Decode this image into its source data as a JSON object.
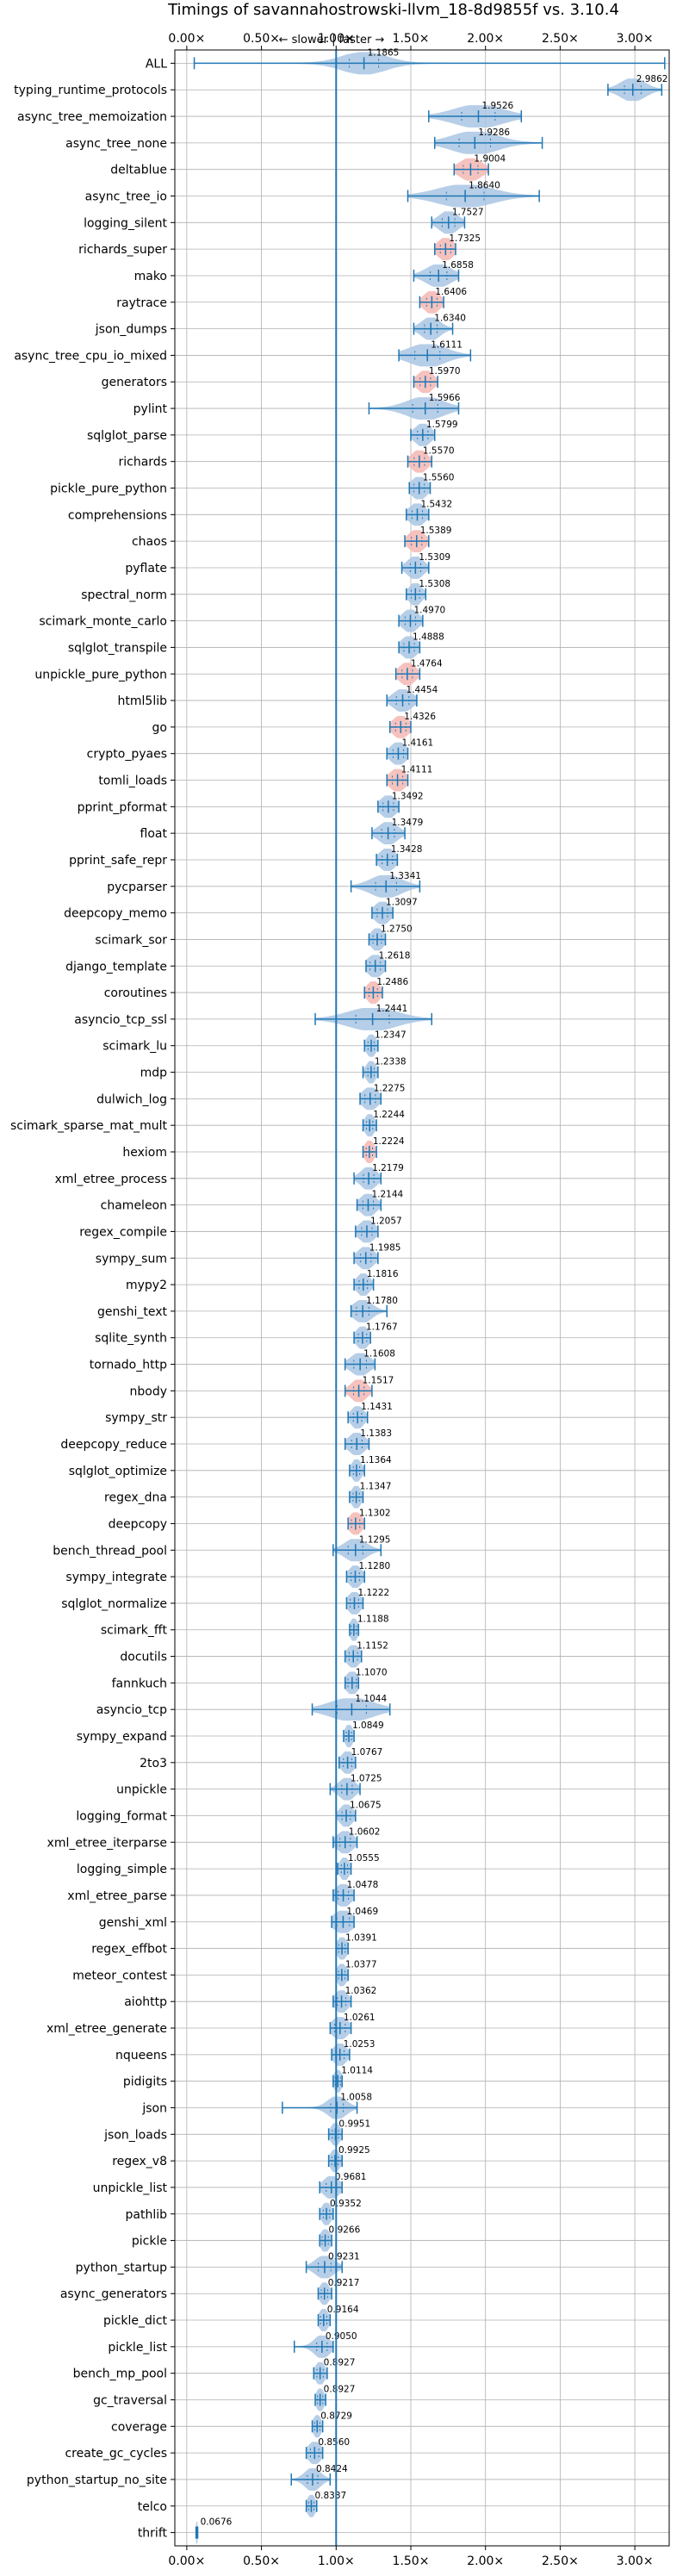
{
  "chart_data": {
    "type": "violin",
    "title": "Timings of savannahostrowski-llvm_18-8d9855f vs. 3.10.4",
    "direction_label": "← slower | faster →",
    "xlim": [
      -0.08,
      3.23
    ],
    "xticks": [
      0.0,
      0.5,
      1.0,
      1.5,
      2.0,
      2.5,
      3.0
    ],
    "xtick_labels": [
      "0.00×",
      "0.50×",
      "1.00×",
      "1.50×",
      "2.00×",
      "2.50×",
      "3.00×"
    ],
    "reference_line": 1.0,
    "grid": true,
    "colors": {
      "violin_fill": "#a9c6e3",
      "highlight_fill": "#f4b7b3",
      "line": "#1f77b4",
      "grid": "#b0b0b0"
    },
    "benchmarks": [
      {
        "name": "ALL",
        "value": 1.1865,
        "label": "1.1865",
        "min": 0.05,
        "max": 3.2,
        "spread": 0.14
      },
      {
        "name": "typing_runtime_protocols",
        "value": 2.9862,
        "label": "2.9862",
        "min": 2.82,
        "max": 3.18,
        "spread": 0.08
      },
      {
        "name": "async_tree_memoization",
        "value": 1.9526,
        "label": "1.9526",
        "min": 1.62,
        "max": 2.24,
        "spread": 0.16
      },
      {
        "name": "async_tree_none",
        "value": 1.9286,
        "label": "1.9286",
        "min": 1.66,
        "max": 2.38,
        "spread": 0.15
      },
      {
        "name": "deltablue",
        "value": 1.9004,
        "label": "1.9004",
        "min": 1.79,
        "max": 2.02,
        "spread": 0.07,
        "highlight": true
      },
      {
        "name": "async_tree_io",
        "value": 1.864,
        "label": "1.8640",
        "min": 1.48,
        "max": 2.36,
        "spread": 0.18
      },
      {
        "name": "logging_silent",
        "value": 1.7527,
        "label": "1.7527",
        "min": 1.64,
        "max": 1.86,
        "spread": 0.06
      },
      {
        "name": "richards_super",
        "value": 1.7325,
        "label": "1.7325",
        "min": 1.66,
        "max": 1.8,
        "spread": 0.05,
        "highlight": true
      },
      {
        "name": "mako",
        "value": 1.6858,
        "label": "1.6858",
        "min": 1.52,
        "max": 1.82,
        "spread": 0.08
      },
      {
        "name": "raytrace",
        "value": 1.6406,
        "label": "1.6406",
        "min": 1.56,
        "max": 1.72,
        "spread": 0.05,
        "highlight": true
      },
      {
        "name": "json_dumps",
        "value": 1.634,
        "label": "1.6340",
        "min": 1.52,
        "max": 1.78,
        "spread": 0.06
      },
      {
        "name": "async_tree_cpu_io_mixed",
        "value": 1.6111,
        "label": "1.6111",
        "min": 1.42,
        "max": 1.9,
        "spread": 0.12
      },
      {
        "name": "generators",
        "value": 1.597,
        "label": "1.5970",
        "min": 1.52,
        "max": 1.68,
        "spread": 0.05,
        "highlight": true
      },
      {
        "name": "pylint",
        "value": 1.5966,
        "label": "1.5966",
        "min": 1.22,
        "max": 1.82,
        "spread": 0.12
      },
      {
        "name": "sqlglot_parse",
        "value": 1.5799,
        "label": "1.5799",
        "min": 1.5,
        "max": 1.66,
        "spread": 0.05
      },
      {
        "name": "richards",
        "value": 1.557,
        "label": "1.5570",
        "min": 1.48,
        "max": 1.64,
        "spread": 0.05,
        "highlight": true
      },
      {
        "name": "pickle_pure_python",
        "value": 1.556,
        "label": "1.5560",
        "min": 1.49,
        "max": 1.63,
        "spread": 0.05
      },
      {
        "name": "comprehensions",
        "value": 1.5432,
        "label": "1.5432",
        "min": 1.47,
        "max": 1.62,
        "spread": 0.05
      },
      {
        "name": "chaos",
        "value": 1.5389,
        "label": "1.5389",
        "min": 1.46,
        "max": 1.62,
        "spread": 0.05,
        "highlight": true
      },
      {
        "name": "pyflate",
        "value": 1.5309,
        "label": "1.5309",
        "min": 1.44,
        "max": 1.62,
        "spread": 0.05
      },
      {
        "name": "spectral_norm",
        "value": 1.5308,
        "label": "1.5308",
        "min": 1.47,
        "max": 1.6,
        "spread": 0.04
      },
      {
        "name": "scimark_monte_carlo",
        "value": 1.497,
        "label": "1.4970",
        "min": 1.42,
        "max": 1.58,
        "spread": 0.05
      },
      {
        "name": "sqlglot_transpile",
        "value": 1.4888,
        "label": "1.4888",
        "min": 1.42,
        "max": 1.56,
        "spread": 0.05
      },
      {
        "name": "unpickle_pure_python",
        "value": 1.4764,
        "label": "1.4764",
        "min": 1.4,
        "max": 1.56,
        "spread": 0.05,
        "highlight": true
      },
      {
        "name": "html5lib",
        "value": 1.4454,
        "label": "1.4454",
        "min": 1.34,
        "max": 1.54,
        "spread": 0.06
      },
      {
        "name": "go",
        "value": 1.4326,
        "label": "1.4326",
        "min": 1.36,
        "max": 1.5,
        "spread": 0.05,
        "highlight": true
      },
      {
        "name": "crypto_pyaes",
        "value": 1.4161,
        "label": "1.4161",
        "min": 1.34,
        "max": 1.48,
        "spread": 0.05
      },
      {
        "name": "tomli_loads",
        "value": 1.4111,
        "label": "1.4111",
        "min": 1.34,
        "max": 1.48,
        "spread": 0.05,
        "highlight": true
      },
      {
        "name": "pprint_pformat",
        "value": 1.3492,
        "label": "1.3492",
        "min": 1.28,
        "max": 1.42,
        "spread": 0.05
      },
      {
        "name": "float",
        "value": 1.3479,
        "label": "1.3479",
        "min": 1.24,
        "max": 1.46,
        "spread": 0.06
      },
      {
        "name": "pprint_safe_repr",
        "value": 1.3428,
        "label": "1.3428",
        "min": 1.27,
        "max": 1.41,
        "spread": 0.05
      },
      {
        "name": "pycparser",
        "value": 1.3341,
        "label": "1.3341",
        "min": 1.1,
        "max": 1.56,
        "spread": 0.1
      },
      {
        "name": "deepcopy_memo",
        "value": 1.3097,
        "label": "1.3097",
        "min": 1.24,
        "max": 1.38,
        "spread": 0.05
      },
      {
        "name": "scimark_sor",
        "value": 1.275,
        "label": "1.2750",
        "min": 1.22,
        "max": 1.33,
        "spread": 0.04
      },
      {
        "name": "django_template",
        "value": 1.2618,
        "label": "1.2618",
        "min": 1.2,
        "max": 1.33,
        "spread": 0.05
      },
      {
        "name": "coroutines",
        "value": 1.2486,
        "label": "1.2486",
        "min": 1.19,
        "max": 1.31,
        "spread": 0.04,
        "highlight": true
      },
      {
        "name": "asyncio_tcp_ssl",
        "value": 1.2441,
        "label": "1.2441",
        "min": 0.86,
        "max": 1.64,
        "spread": 0.16
      },
      {
        "name": "scimark_lu",
        "value": 1.2347,
        "label": "1.2347",
        "min": 1.19,
        "max": 1.28,
        "spread": 0.03
      },
      {
        "name": "mdp",
        "value": 1.2338,
        "label": "1.2338",
        "min": 1.18,
        "max": 1.28,
        "spread": 0.03
      },
      {
        "name": "dulwich_log",
        "value": 1.2275,
        "label": "1.2275",
        "min": 1.16,
        "max": 1.3,
        "spread": 0.05
      },
      {
        "name": "scimark_sparse_mat_mult",
        "value": 1.2244,
        "label": "1.2244",
        "min": 1.18,
        "max": 1.27,
        "spread": 0.03
      },
      {
        "name": "hexiom",
        "value": 1.2224,
        "label": "1.2224",
        "min": 1.18,
        "max": 1.27,
        "spread": 0.03,
        "highlight": true
      },
      {
        "name": "xml_etree_process",
        "value": 1.2179,
        "label": "1.2179",
        "min": 1.12,
        "max": 1.3,
        "spread": 0.05
      },
      {
        "name": "chameleon",
        "value": 1.2144,
        "label": "1.2144",
        "min": 1.14,
        "max": 1.3,
        "spread": 0.05
      },
      {
        "name": "regex_compile",
        "value": 1.2057,
        "label": "1.2057",
        "min": 1.13,
        "max": 1.28,
        "spread": 0.05
      },
      {
        "name": "sympy_sum",
        "value": 1.1985,
        "label": "1.1985",
        "min": 1.12,
        "max": 1.28,
        "spread": 0.05
      },
      {
        "name": "mypy2",
        "value": 1.1816,
        "label": "1.1816",
        "min": 1.12,
        "max": 1.25,
        "spread": 0.04
      },
      {
        "name": "genshi_text",
        "value": 1.178,
        "label": "1.1780",
        "min": 1.1,
        "max": 1.34,
        "spread": 0.06
      },
      {
        "name": "sqlite_synth",
        "value": 1.1767,
        "label": "1.1767",
        "min": 1.12,
        "max": 1.23,
        "spread": 0.04
      },
      {
        "name": "tornado_http",
        "value": 1.1608,
        "label": "1.1608",
        "min": 1.06,
        "max": 1.26,
        "spread": 0.06
      },
      {
        "name": "nbody",
        "value": 1.1517,
        "label": "1.1517",
        "min": 1.06,
        "max": 1.24,
        "spread": 0.05,
        "highlight": true
      },
      {
        "name": "sympy_str",
        "value": 1.1431,
        "label": "1.1431",
        "min": 1.08,
        "max": 1.21,
        "spread": 0.04
      },
      {
        "name": "deepcopy_reduce",
        "value": 1.1383,
        "label": "1.1383",
        "min": 1.06,
        "max": 1.22,
        "spread": 0.05
      },
      {
        "name": "sqlglot_optimize",
        "value": 1.1364,
        "label": "1.1364",
        "min": 1.09,
        "max": 1.19,
        "spread": 0.03
      },
      {
        "name": "regex_dna",
        "value": 1.1347,
        "label": "1.1347",
        "min": 1.09,
        "max": 1.18,
        "spread": 0.03
      },
      {
        "name": "deepcopy",
        "value": 1.1302,
        "label": "1.1302",
        "min": 1.08,
        "max": 1.19,
        "spread": 0.04,
        "highlight": true
      },
      {
        "name": "bench_thread_pool",
        "value": 1.1295,
        "label": "1.1295",
        "min": 0.98,
        "max": 1.3,
        "spread": 0.07
      },
      {
        "name": "sympy_integrate",
        "value": 1.128,
        "label": "1.1280",
        "min": 1.07,
        "max": 1.19,
        "spread": 0.04
      },
      {
        "name": "sqlglot_normalize",
        "value": 1.1222,
        "label": "1.1222",
        "min": 1.07,
        "max": 1.18,
        "spread": 0.04
      },
      {
        "name": "scimark_fft",
        "value": 1.1188,
        "label": "1.1188",
        "min": 1.09,
        "max": 1.15,
        "spread": 0.025
      },
      {
        "name": "docutils",
        "value": 1.1152,
        "label": "1.1152",
        "min": 1.06,
        "max": 1.17,
        "spread": 0.04
      },
      {
        "name": "fannkuch",
        "value": 1.107,
        "label": "1.1070",
        "min": 1.06,
        "max": 1.15,
        "spread": 0.04
      },
      {
        "name": "asyncio_tcp",
        "value": 1.1044,
        "label": "1.1044",
        "min": 0.84,
        "max": 1.36,
        "spread": 0.14
      },
      {
        "name": "sympy_expand",
        "value": 1.0849,
        "label": "1.0849",
        "min": 1.05,
        "max": 1.12,
        "spread": 0.025
      },
      {
        "name": "2to3",
        "value": 1.0767,
        "label": "1.0767",
        "min": 1.02,
        "max": 1.13,
        "spread": 0.04
      },
      {
        "name": "unpickle",
        "value": 1.0725,
        "label": "1.0725",
        "min": 0.96,
        "max": 1.16,
        "spread": 0.05
      },
      {
        "name": "logging_format",
        "value": 1.0675,
        "label": "1.0675",
        "min": 1.0,
        "max": 1.13,
        "spread": 0.04
      },
      {
        "name": "xml_etree_iterparse",
        "value": 1.0602,
        "label": "1.0602",
        "min": 0.98,
        "max": 1.14,
        "spread": 0.05
      },
      {
        "name": "logging_simple",
        "value": 1.0555,
        "label": "1.0555",
        "min": 1.01,
        "max": 1.1,
        "spread": 0.03
      },
      {
        "name": "xml_etree_parse",
        "value": 1.0478,
        "label": "1.0478",
        "min": 0.98,
        "max": 1.12,
        "spread": 0.05
      },
      {
        "name": "genshi_xml",
        "value": 1.0469,
        "label": "1.0469",
        "min": 0.97,
        "max": 1.12,
        "spread": 0.06
      },
      {
        "name": "regex_effbot",
        "value": 1.0391,
        "label": "1.0391",
        "min": 1.0,
        "max": 1.08,
        "spread": 0.03
      },
      {
        "name": "meteor_contest",
        "value": 1.0377,
        "label": "1.0377",
        "min": 1.0,
        "max": 1.08,
        "spread": 0.03
      },
      {
        "name": "aiohttp",
        "value": 1.0362,
        "label": "1.0362",
        "min": 0.98,
        "max": 1.1,
        "spread": 0.04
      },
      {
        "name": "xml_etree_generate",
        "value": 1.0261,
        "label": "1.0261",
        "min": 0.96,
        "max": 1.1,
        "spread": 0.05
      },
      {
        "name": "nqueens",
        "value": 1.0253,
        "label": "1.0253",
        "min": 0.97,
        "max": 1.09,
        "spread": 0.04
      },
      {
        "name": "pidigits",
        "value": 1.0114,
        "label": "1.0114",
        "min": 0.98,
        "max": 1.04,
        "spread": 0.025
      },
      {
        "name": "json",
        "value": 1.0058,
        "label": "1.0058",
        "min": 0.64,
        "max": 1.14,
        "spread": 0.06
      },
      {
        "name": "json_loads",
        "value": 0.9951,
        "label": "0.9951",
        "min": 0.95,
        "max": 1.04,
        "spread": 0.03
      },
      {
        "name": "regex_v8",
        "value": 0.9925,
        "label": "0.9925",
        "min": 0.95,
        "max": 1.04,
        "spread": 0.03
      },
      {
        "name": "unpickle_list",
        "value": 0.9681,
        "label": "0.9681",
        "min": 0.89,
        "max": 1.04,
        "spread": 0.05
      },
      {
        "name": "pathlib",
        "value": 0.9352,
        "label": "0.9352",
        "min": 0.89,
        "max": 0.98,
        "spread": 0.03
      },
      {
        "name": "pickle",
        "value": 0.9266,
        "label": "0.9266",
        "min": 0.89,
        "max": 0.97,
        "spread": 0.03
      },
      {
        "name": "python_startup",
        "value": 0.9231,
        "label": "0.9231",
        "min": 0.8,
        "max": 1.04,
        "spread": 0.06
      },
      {
        "name": "async_generators",
        "value": 0.9217,
        "label": "0.9217",
        "min": 0.88,
        "max": 0.97,
        "spread": 0.03
      },
      {
        "name": "pickle_dict",
        "value": 0.9164,
        "label": "0.9164",
        "min": 0.88,
        "max": 0.96,
        "spread": 0.03
      },
      {
        "name": "pickle_list",
        "value": 0.905,
        "label": "0.9050",
        "min": 0.72,
        "max": 0.98,
        "spread": 0.05
      },
      {
        "name": "bench_mp_pool",
        "value": 0.8927,
        "label": "0.8927",
        "min": 0.85,
        "max": 0.94,
        "spread": 0.03
      },
      {
        "name": "gc_traversal",
        "value": 0.8927,
        "label": "0.8927",
        "min": 0.86,
        "max": 0.93,
        "spread": 0.025
      },
      {
        "name": "coverage",
        "value": 0.8729,
        "label": "0.8729",
        "min": 0.84,
        "max": 0.91,
        "spread": 0.025
      },
      {
        "name": "create_gc_cycles",
        "value": 0.856,
        "label": "0.8560",
        "min": 0.8,
        "max": 0.91,
        "spread": 0.04
      },
      {
        "name": "python_startup_no_site",
        "value": 0.8424,
        "label": "0.8424",
        "min": 0.7,
        "max": 0.96,
        "spread": 0.05
      },
      {
        "name": "telco",
        "value": 0.8337,
        "label": "0.8337",
        "min": 0.8,
        "max": 0.87,
        "spread": 0.025
      },
      {
        "name": "thrift",
        "value": 0.0676,
        "label": "0.0676",
        "min": 0.062,
        "max": 0.073,
        "spread": 0.006
      }
    ]
  }
}
